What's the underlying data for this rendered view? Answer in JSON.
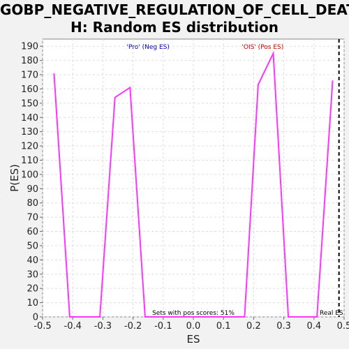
{
  "chart_data": {
    "type": "line",
    "title_line1": "GOBP_NEGATIVE_REGULATION_OF_CELL_DEAT",
    "title_line2": "H: Random ES distribution",
    "xlabel": "ES",
    "ylabel": "P(ES)",
    "xlim": [
      -0.5,
      0.5
    ],
    "ylim": [
      0,
      195
    ],
    "xticks": [
      -0.5,
      -0.4,
      -0.3,
      -0.2,
      -0.1,
      0.0,
      0.1,
      0.2,
      0.3,
      0.4,
      0.5
    ],
    "xtick_labels": [
      "-0.5",
      "-0.4",
      "-0.3",
      "-0.2",
      "-0.1",
      "0.0",
      "0.1",
      "0.2",
      "0.3",
      "0.4",
      "0.5"
    ],
    "yticks": [
      0,
      10,
      20,
      30,
      40,
      50,
      60,
      70,
      80,
      90,
      100,
      110,
      120,
      130,
      140,
      150,
      160,
      170,
      180,
      190
    ],
    "grid": true,
    "series": [
      {
        "color": "#ff33ff",
        "x": [
          -0.462,
          -0.41,
          -0.31,
          -0.26,
          -0.21,
          -0.16,
          0.17,
          0.215,
          0.265,
          0.315,
          0.41,
          0.462
        ],
        "y": [
          171,
          0,
          0,
          154,
          161,
          0,
          0,
          163,
          185,
          0,
          0,
          166
        ]
      }
    ],
    "real_es": {
      "x": 0.483,
      "label": "Real ES"
    },
    "annotations": {
      "left_label": "'Pro' (Neg ES)",
      "left_color": "#0000cc",
      "right_label": "'OIS' (Pos ES)",
      "right_color": "#cc0000",
      "bottom_label": "Sets with pos scores: 51%"
    }
  }
}
